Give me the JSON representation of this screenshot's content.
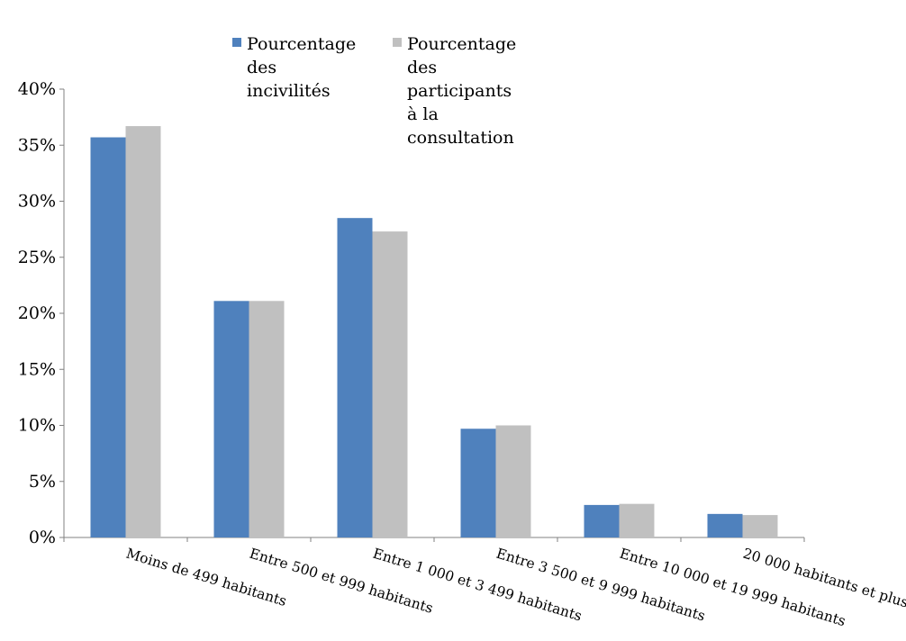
{
  "chart_data": {
    "type": "bar",
    "categories": [
      "Moins de 499 habitants",
      "Entre 500 et 999 habitants",
      "Entre 1 000 et 3 499 habitants",
      "Entre 3 500 et 9 999 habitants",
      "Entre 10 000 et 19 999 habitants",
      "20 000  habitants et plus"
    ],
    "series": [
      {
        "name": "Pourcentage\ndes incivilités",
        "color": "#4f81bd",
        "values": [
          35.7,
          21.1,
          28.5,
          9.7,
          2.9,
          2.1
        ]
      },
      {
        "name": "Pourcentage\ndes participants à la consultation",
        "color": "#c0c0c0",
        "values": [
          36.7,
          21.1,
          27.3,
          10.0,
          3.0,
          2.0
        ]
      }
    ],
    "ylim": [
      0,
      40
    ],
    "yticks": [
      "0%",
      "5%",
      "10%",
      "15%",
      "20%",
      "25%",
      "30%",
      "35%",
      "40%"
    ],
    "ytick_values": [
      0,
      5,
      10,
      15,
      20,
      25,
      30,
      35,
      40
    ],
    "grid": false,
    "legend_position": "top"
  }
}
